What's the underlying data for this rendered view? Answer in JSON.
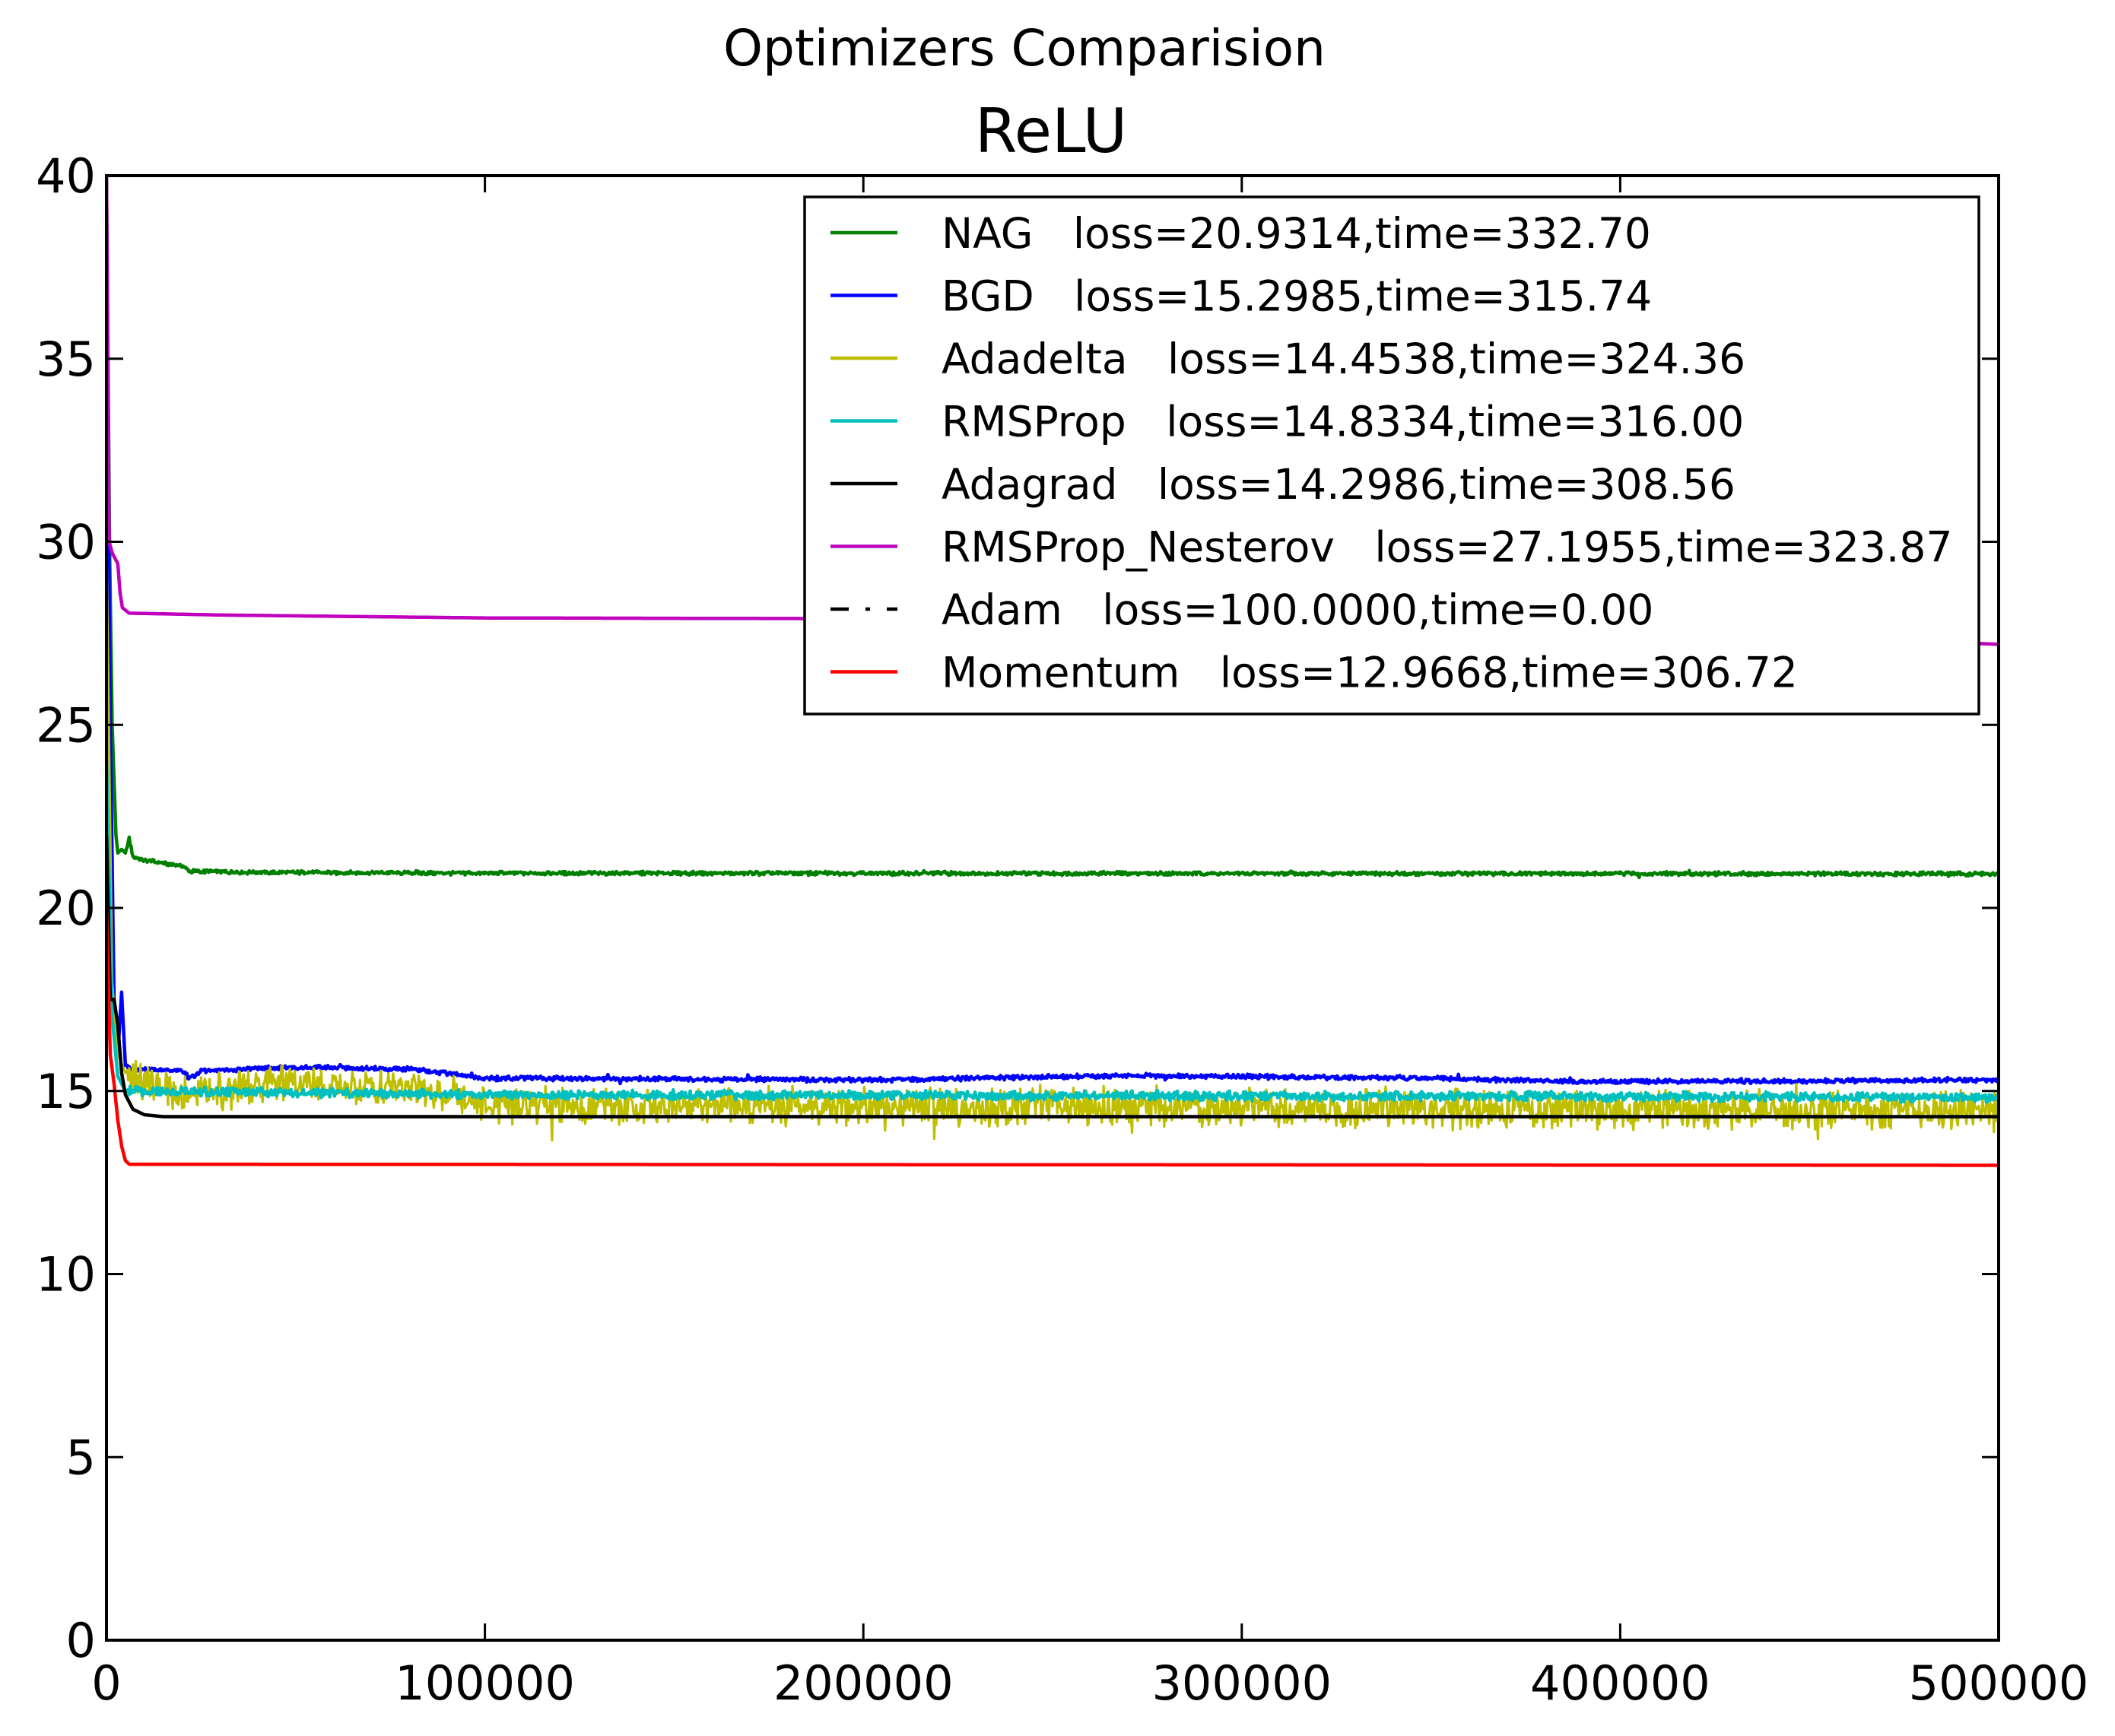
{
  "chart_data": {
    "type": "line",
    "suptitle": "Optimizers Comparision",
    "title": "ReLU",
    "xlabel": "",
    "ylabel": "",
    "xlim": [
      0,
      500000
    ],
    "ylim": [
      0,
      40
    ],
    "xticks": [
      {
        "value": 0,
        "label": "0"
      },
      {
        "value": 100000,
        "label": "100000"
      },
      {
        "value": 200000,
        "label": "200000"
      },
      {
        "value": 300000,
        "label": "300000"
      },
      {
        "value": 400000,
        "label": "400000"
      },
      {
        "value": 500000,
        "label": "500000"
      }
    ],
    "yticks": [
      {
        "value": 0,
        "label": "0"
      },
      {
        "value": 5,
        "label": "5"
      },
      {
        "value": 10,
        "label": "10"
      },
      {
        "value": 15,
        "label": "15"
      },
      {
        "value": 20,
        "label": "20"
      },
      {
        "value": 25,
        "label": "25"
      },
      {
        "value": 30,
        "label": "30"
      },
      {
        "value": 35,
        "label": "35"
      },
      {
        "value": 40,
        "label": "40"
      }
    ],
    "grid": false,
    "legend_position": "upper right",
    "series": [
      {
        "name": "NAG",
        "legend": "NAG   loss=20.9314,time=332.70",
        "color": "#008000",
        "dash": "solid",
        "noise": 0.05,
        "points": [
          [
            0,
            40
          ],
          [
            800,
            30
          ],
          [
            1500,
            25
          ],
          [
            2000,
            23.5
          ],
          [
            2500,
            22
          ],
          [
            3000,
            21.5
          ],
          [
            4000,
            21.6
          ],
          [
            5000,
            21.5
          ],
          [
            6000,
            21.9
          ],
          [
            7000,
            21.4
          ],
          [
            10000,
            21.3
          ],
          [
            20000,
            21.15
          ],
          [
            22000,
            21.0
          ],
          [
            40000,
            20.97
          ],
          [
            100000,
            20.95
          ],
          [
            500000,
            20.93
          ]
        ]
      },
      {
        "name": "BGD",
        "legend": "BGD   loss=15.2985,time=315.74",
        "color": "#0000ff",
        "dash": "solid",
        "noise": 0.06,
        "points": [
          [
            0,
            38
          ],
          [
            1000,
            25
          ],
          [
            2000,
            17.5
          ],
          [
            3000,
            16.0
          ],
          [
            4000,
            17.7
          ],
          [
            5000,
            15.7
          ],
          [
            6000,
            15.6
          ],
          [
            20000,
            15.55
          ],
          [
            22000,
            15.35
          ],
          [
            25000,
            15.55
          ],
          [
            50000,
            15.65
          ],
          [
            80000,
            15.6
          ],
          [
            100000,
            15.35
          ],
          [
            200000,
            15.3
          ],
          [
            270000,
            15.42
          ],
          [
            350000,
            15.35
          ],
          [
            390000,
            15.25
          ],
          [
            500000,
            15.3
          ]
        ]
      },
      {
        "name": "Adadelta",
        "legend": "Adadelta   loss=14.4538,time=324.36",
        "color": "#bfbf00",
        "dash": "solid",
        "noise": 0.5,
        "points": [
          [
            0,
            30
          ],
          [
            1500,
            18
          ],
          [
            3000,
            16
          ],
          [
            5000,
            15.5
          ],
          [
            10000,
            15.2
          ],
          [
            20000,
            14.9
          ],
          [
            50000,
            15.2
          ],
          [
            90000,
            15.0
          ],
          [
            100000,
            14.6
          ],
          [
            200000,
            14.6
          ],
          [
            500000,
            14.45
          ]
        ]
      },
      {
        "name": "RMSProp",
        "legend": "RMSProp   loss=14.8334,time=316.00",
        "color": "#00bfbf",
        "dash": "solid",
        "noise": 0.12,
        "points": [
          [
            0,
            24
          ],
          [
            1500,
            17
          ],
          [
            3000,
            15.4
          ],
          [
            5000,
            15.0
          ],
          [
            100000,
            14.9
          ],
          [
            500000,
            14.83
          ]
        ]
      },
      {
        "name": "Adagrad",
        "legend": "Adagrad   loss=14.2986,time=308.56",
        "color": "#000000",
        "dash": "solid",
        "noise": 0,
        "points": [
          [
            0,
            22
          ],
          [
            1000,
            17.5
          ],
          [
            2000,
            17.5
          ],
          [
            3000,
            16.8
          ],
          [
            4000,
            15.5
          ],
          [
            5000,
            14.9
          ],
          [
            7000,
            14.5
          ],
          [
            10000,
            14.35
          ],
          [
            15000,
            14.3
          ],
          [
            500000,
            14.3
          ]
        ]
      },
      {
        "name": "RMSProp_Nesterov",
        "legend": "RMSProp_Nesterov   loss=27.1955,time=323.87",
        "color": "#bf00bf",
        "dash": "solid",
        "noise": 0,
        "points": [
          [
            0,
            40
          ],
          [
            700,
            30
          ],
          [
            1500,
            29.7
          ],
          [
            3000,
            29.4
          ],
          [
            3600,
            28.6
          ],
          [
            4200,
            28.2
          ],
          [
            6000,
            28.05
          ],
          [
            30000,
            28.0
          ],
          [
            100000,
            27.92
          ],
          [
            200000,
            27.9
          ],
          [
            300000,
            27.82
          ],
          [
            400000,
            27.6
          ],
          [
            500000,
            27.2
          ]
        ]
      },
      {
        "name": "Adam",
        "legend": "Adam   loss=100.0000,time=0.00",
        "color": "#000000",
        "dash": "dashdot",
        "noise": 0,
        "points": []
      },
      {
        "name": "Momentum",
        "legend": "Momentum   loss=12.9668,time=306.72",
        "color": "#ff0000",
        "dash": "solid",
        "noise": 0,
        "points": [
          [
            0,
            20
          ],
          [
            1000,
            16
          ],
          [
            2000,
            15.2
          ],
          [
            3000,
            14.2
          ],
          [
            4000,
            13.5
          ],
          [
            5000,
            13.1
          ],
          [
            6000,
            13.0
          ],
          [
            500000,
            12.97
          ]
        ]
      }
    ]
  }
}
